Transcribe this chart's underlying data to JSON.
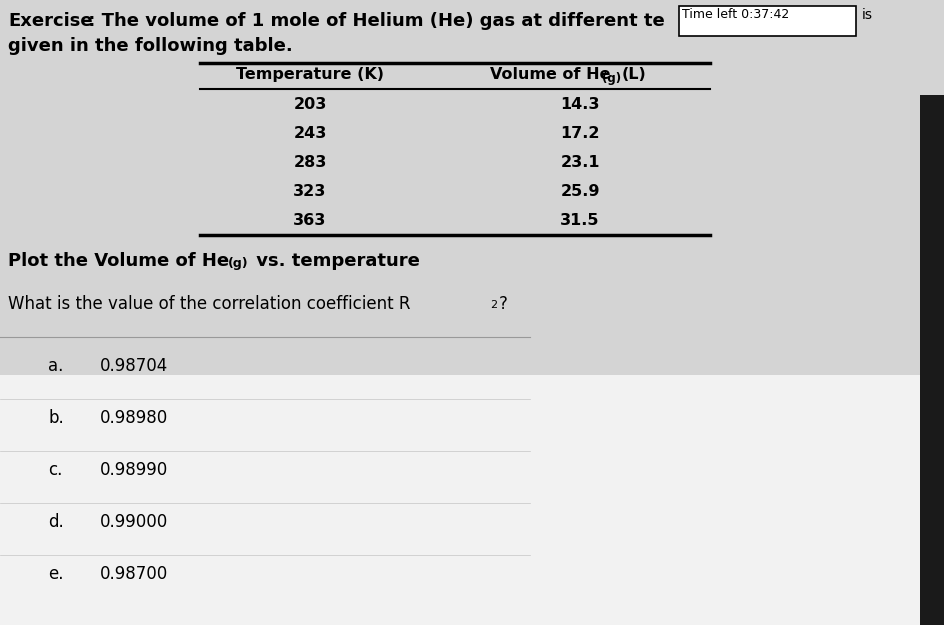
{
  "title_bold": "Exercise",
  "title_colon": " : The volume of 1 mole of Helium (He) gas at different te",
  "title_line2": "given in the following table.",
  "timer_label": "Time left 0:37:42",
  "table_col1": [
    203,
    243,
    283,
    323,
    363
  ],
  "table_col2": [
    "14.3",
    "17.2",
    "23.1",
    "25.9",
    "31.5"
  ],
  "instruction_bold": "Plot the Volume of He",
  "instruction_sub": "(g)",
  "instruction_rest": " vs. temperature",
  "question": "What is the value of the correlation coefficient R",
  "options": [
    {
      "label": "a.",
      "value": "0.98704"
    },
    {
      "label": "b.",
      "value": "0.98980"
    },
    {
      "label": "c.",
      "value": "0.98990"
    },
    {
      "label": "d.",
      "value": "0.99000"
    },
    {
      "label": "e.",
      "value": "0.98700"
    }
  ],
  "bg_top_color": "#c8c8c8",
  "bg_bottom_color": "#f0f0f0",
  "text_color": "#000000",
  "right_bar_color": "#1a1a1a",
  "timer_box_color": "#ffffff",
  "divider_color": "#999999"
}
